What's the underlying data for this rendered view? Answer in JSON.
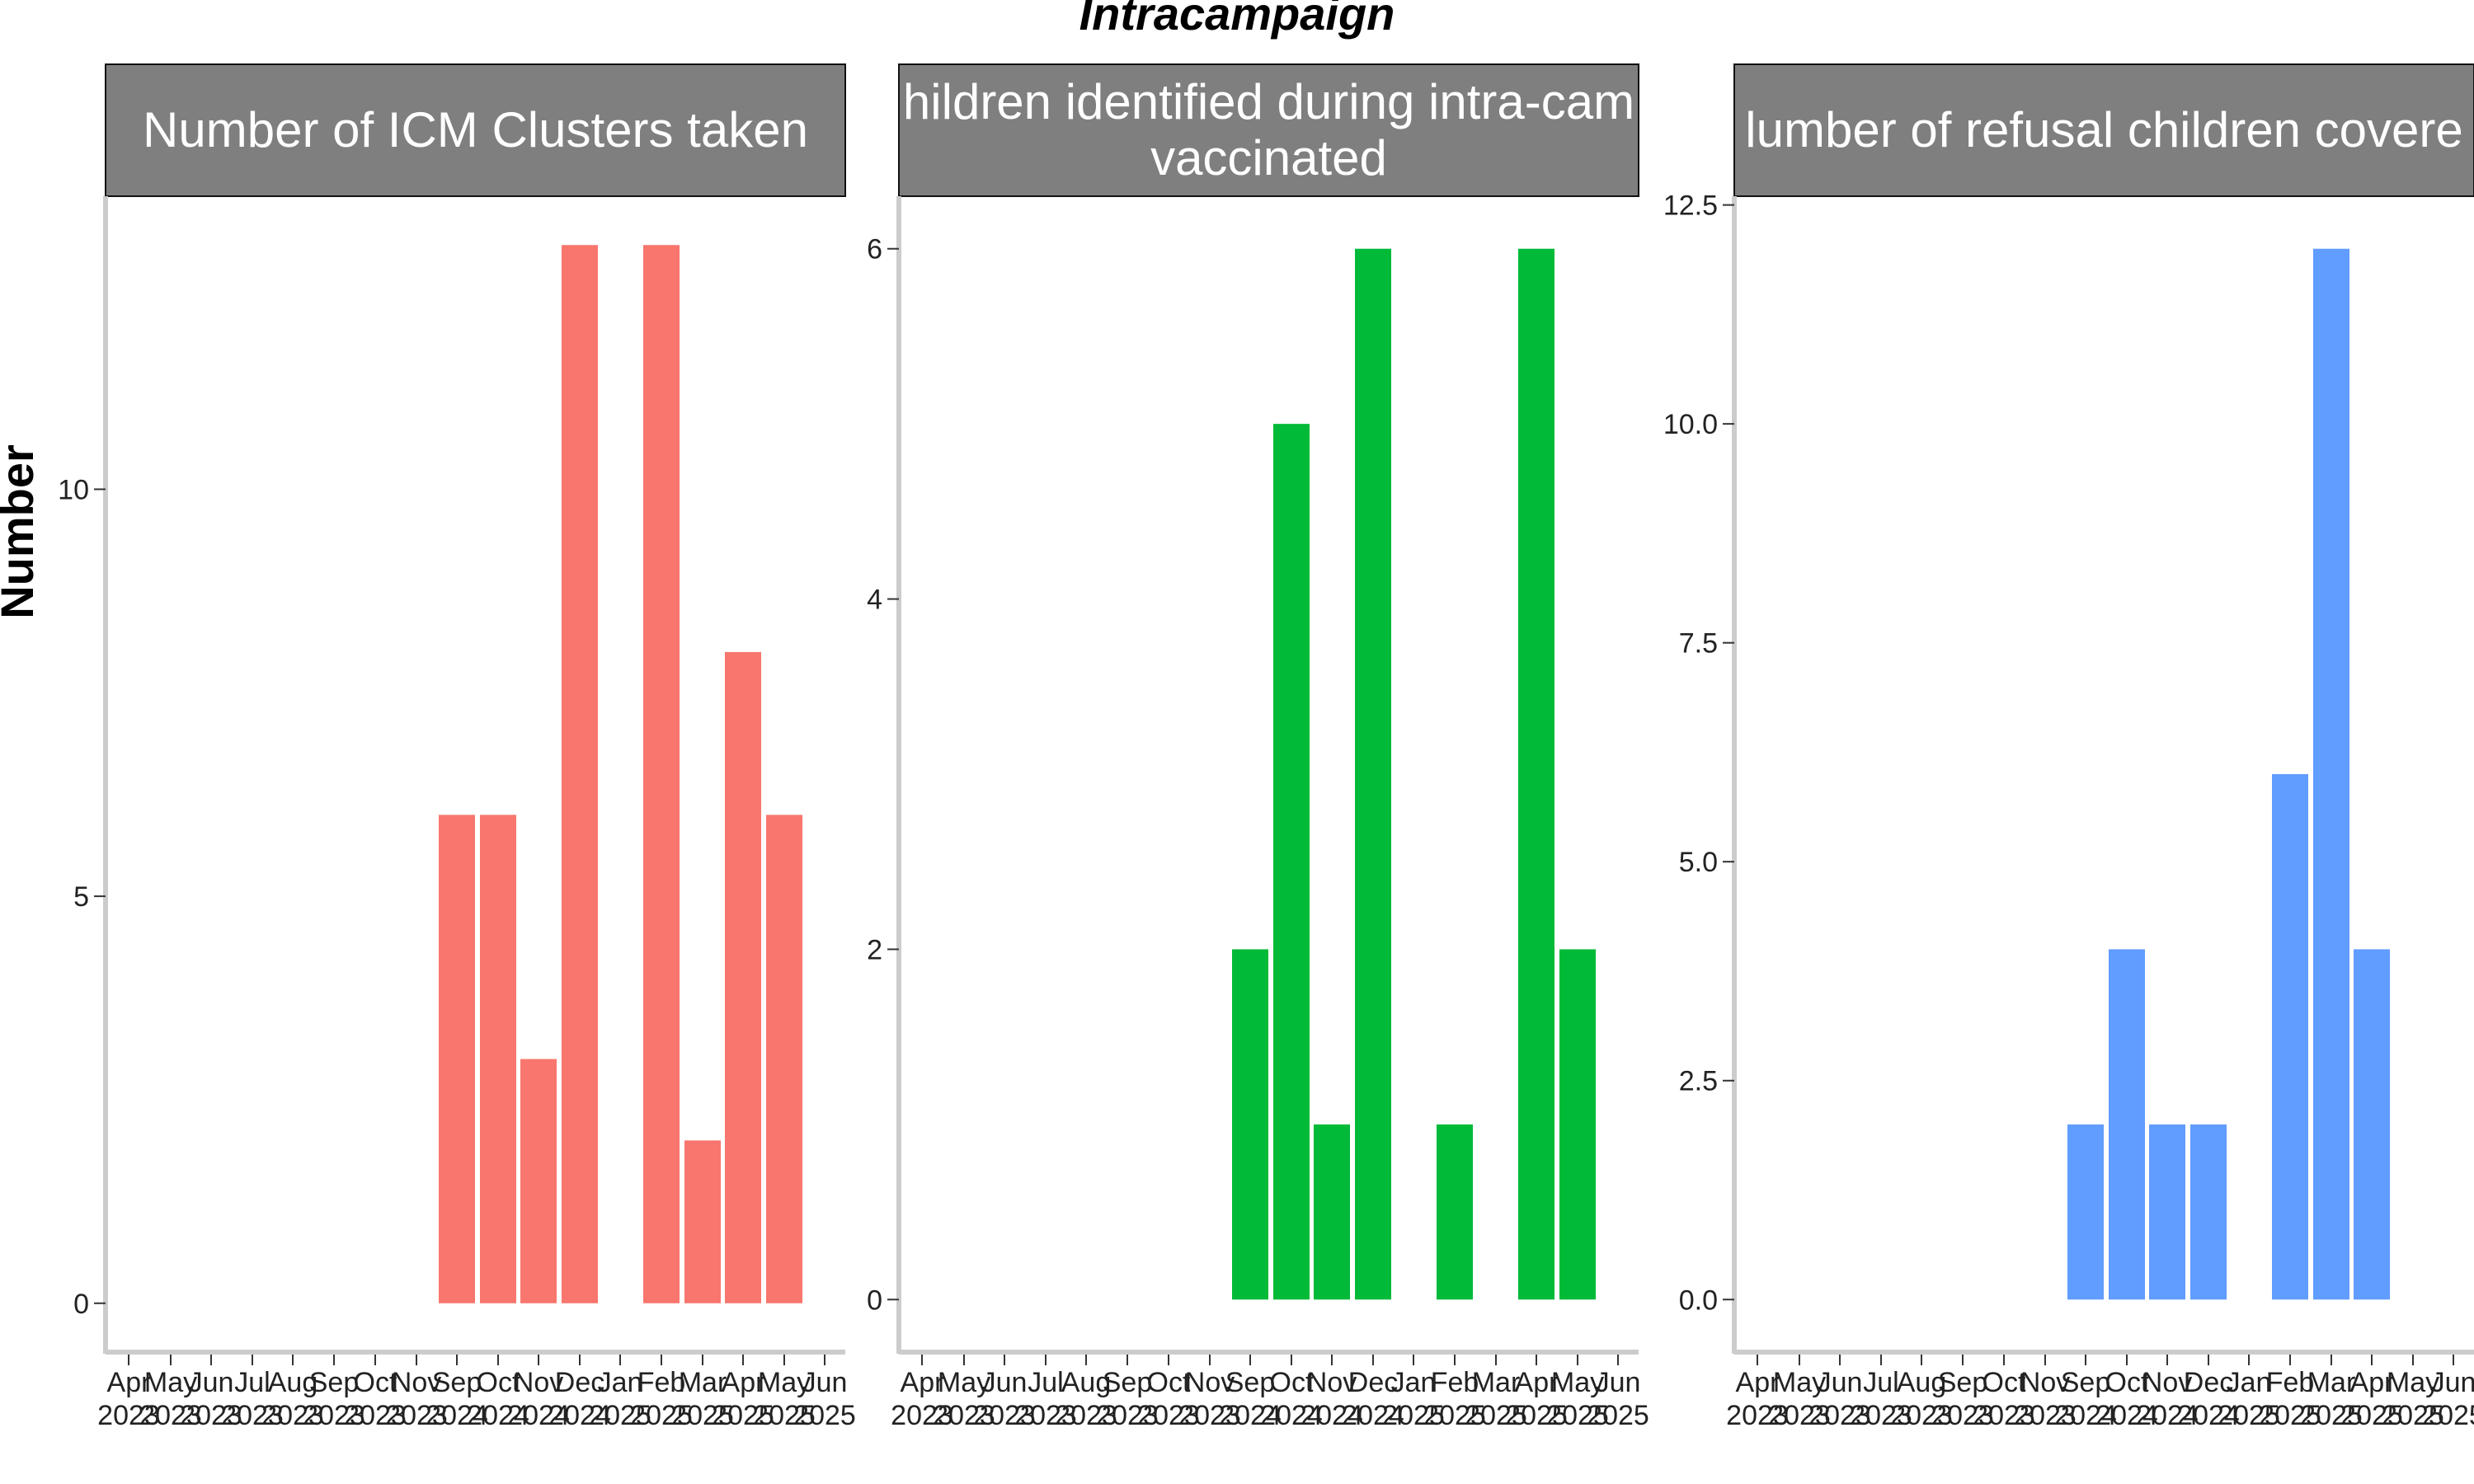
{
  "chart_data": {
    "type": "bar",
    "title": "Intracampaign",
    "ylabel": "Number",
    "xlabel": "",
    "categories": [
      "Apr 2023",
      "May 2023",
      "Jun 2023",
      "Jul 2023",
      "Aug 2023",
      "Sep 2023",
      "Oct 2023",
      "Nov 2023",
      "Sep 2024",
      "Oct 2024",
      "Nov 2024",
      "Dec 2024",
      "Jan 2025",
      "Feb 2025",
      "Mar 2025",
      "Apr 2025",
      "May 2025",
      "Jun 2025"
    ],
    "tick_labels": [
      [
        "Apr",
        "2023"
      ],
      [
        "May",
        "2023"
      ],
      [
        "Jun",
        "2023"
      ],
      [
        "Jul",
        "2023"
      ],
      [
        "Aug",
        "2023"
      ],
      [
        "Sep",
        "2023"
      ],
      [
        "Oct",
        "2023"
      ],
      [
        "Nov",
        "2023"
      ],
      [
        "Sep",
        "2024"
      ],
      [
        "Oct",
        "2024"
      ],
      [
        "Nov",
        "2024"
      ],
      [
        "Dec",
        "2024"
      ],
      [
        "Jan",
        "2025"
      ],
      [
        "Feb",
        "2025"
      ],
      [
        "Mar",
        "2025"
      ],
      [
        "Apr",
        "2025"
      ],
      [
        "May",
        "2025"
      ],
      [
        "Jun",
        "2025"
      ]
    ],
    "panels": [
      {
        "strip": [
          "Number of ICM Clusters taken"
        ],
        "color": "#F8766D",
        "ylim": [
          -0.6,
          13.6
        ],
        "yticks": [
          0,
          5,
          10
        ],
        "ytick_labels": [
          "0",
          "5",
          "10"
        ],
        "values": [
          null,
          null,
          null,
          null,
          null,
          null,
          null,
          null,
          6,
          6,
          3,
          13,
          null,
          13,
          2,
          8,
          6,
          null
        ]
      },
      {
        "strip": [
          "hildren identified during intra-cam",
          "vaccinated"
        ],
        "color": "#00BA38",
        "ylim": [
          -0.3,
          6.3
        ],
        "yticks": [
          0,
          2,
          4,
          6
        ],
        "ytick_labels": [
          "0",
          "2",
          "4",
          "6"
        ],
        "values": [
          null,
          null,
          null,
          null,
          null,
          null,
          null,
          null,
          2,
          5,
          1,
          6,
          null,
          1,
          null,
          6,
          2,
          null
        ]
      },
      {
        "strip": [
          "lumber of refusal children covere"
        ],
        "color": "#619CFF",
        "ylim": [
          -0.6,
          12.6
        ],
        "yticks": [
          0,
          2.5,
          5,
          7.5,
          10,
          12.5
        ],
        "ytick_labels": [
          "0.0",
          "2.5",
          "5.0",
          "7.5",
          "10.0",
          "12.5"
        ],
        "values": [
          null,
          null,
          null,
          null,
          null,
          null,
          null,
          null,
          2,
          4,
          2,
          2,
          null,
          6,
          12,
          4,
          null,
          null
        ]
      }
    ],
    "grid": false,
    "legend": "none"
  }
}
